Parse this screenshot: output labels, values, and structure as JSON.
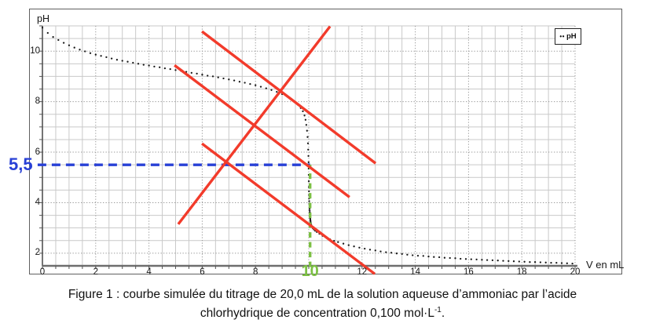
{
  "chart_data": {
    "type": "scatter",
    "xlabel": "V en mL",
    "ylabel": "pH",
    "xlim": [
      0,
      20
    ],
    "ylim": [
      1.5,
      11
    ],
    "x_ticks": [
      0,
      2,
      4,
      6,
      8,
      10,
      12,
      14,
      16,
      18,
      20
    ],
    "y_ticks": [
      2,
      4,
      6,
      8,
      10
    ],
    "minor_step": 0.5,
    "grid": {
      "minor_color": "#c9c9c9",
      "major_color": "#979797"
    },
    "legend": {
      "label": "pH"
    },
    "series": [
      {
        "name": "pH",
        "style": "dotted",
        "color": "#1a1a1a",
        "points": [
          [
            0,
            10.93
          ],
          [
            0.2,
            10.72
          ],
          [
            0.4,
            10.56
          ],
          [
            0.6,
            10.44
          ],
          [
            0.8,
            10.33
          ],
          [
            1,
            10.23
          ],
          [
            1.2,
            10.14
          ],
          [
            1.4,
            10.06
          ],
          [
            1.6,
            9.99
          ],
          [
            1.8,
            9.92
          ],
          [
            2,
            9.86
          ],
          [
            2.2,
            9.81
          ],
          [
            2.4,
            9.76
          ],
          [
            2.6,
            9.71
          ],
          [
            2.8,
            9.66
          ],
          [
            3,
            9.62
          ],
          [
            3.2,
            9.58
          ],
          [
            3.4,
            9.54
          ],
          [
            3.6,
            9.5
          ],
          [
            3.8,
            9.46
          ],
          [
            4,
            9.43
          ],
          [
            4.2,
            9.39
          ],
          [
            4.4,
            9.36
          ],
          [
            4.6,
            9.32
          ],
          [
            4.8,
            9.29
          ],
          [
            5,
            9.25
          ],
          [
            5.2,
            9.22
          ],
          [
            5.4,
            9.18
          ],
          [
            5.6,
            9.14
          ],
          [
            5.8,
            9.11
          ],
          [
            6,
            9.07
          ],
          [
            6.2,
            9.03
          ],
          [
            6.4,
            9
          ],
          [
            6.6,
            8.96
          ],
          [
            6.8,
            8.92
          ],
          [
            7,
            8.88
          ],
          [
            7.2,
            8.84
          ],
          [
            7.4,
            8.79
          ],
          [
            7.6,
            8.75
          ],
          [
            7.8,
            8.7
          ],
          [
            8,
            8.65
          ],
          [
            8.2,
            8.59
          ],
          [
            8.4,
            8.53
          ],
          [
            8.6,
            8.46
          ],
          [
            8.8,
            8.39
          ],
          [
            9,
            8.3
          ],
          [
            9.2,
            8.2
          ],
          [
            9.35,
            8.1
          ],
          [
            9.5,
            7.97
          ],
          [
            9.6,
            7.87
          ],
          [
            9.7,
            7.75
          ],
          [
            9.78,
            7.62
          ],
          [
            9.84,
            7.45
          ],
          [
            9.88,
            7.28
          ],
          [
            9.91,
            7.08
          ],
          [
            9.935,
            6.85
          ],
          [
            9.955,
            6.6
          ],
          [
            9.97,
            6.35
          ],
          [
            9.98,
            6.1
          ],
          [
            9.988,
            5.85
          ],
          [
            9.994,
            5.6
          ],
          [
            9.998,
            5.35
          ],
          [
            10,
            5.1
          ],
          [
            10.003,
            4.85
          ],
          [
            10.006,
            4.62
          ],
          [
            10.009,
            4.45
          ],
          [
            10.012,
            4.3
          ],
          [
            10.015,
            4.17
          ],
          [
            10.018,
            4.06
          ],
          [
            10.022,
            3.96
          ],
          [
            10.026,
            3.86
          ],
          [
            10.03,
            3.76
          ],
          [
            10.034,
            3.69
          ],
          [
            10.038,
            3.62
          ],
          [
            10.042,
            3.56
          ],
          [
            10.046,
            3.5
          ],
          [
            10.05,
            3.44
          ],
          [
            10.055,
            3.38
          ],
          [
            10.06,
            3.33
          ],
          [
            10.066,
            3.28
          ],
          [
            10.072,
            3.23
          ],
          [
            10.08,
            3.18
          ],
          [
            10.09,
            3.13
          ],
          [
            10.1,
            3.09
          ],
          [
            10.12,
            3.04
          ],
          [
            10.15,
            2.99
          ],
          [
            10.19,
            2.94
          ],
          [
            10.24,
            2.89
          ],
          [
            10.3,
            2.84
          ],
          [
            10.4,
            2.77
          ],
          [
            10.52,
            2.69
          ],
          [
            10.66,
            2.61
          ],
          [
            10.8,
            2.55
          ],
          [
            10.95,
            2.49
          ],
          [
            11.1,
            2.44
          ],
          [
            11.3,
            2.38
          ],
          [
            11.5,
            2.32
          ],
          [
            11.7,
            2.27
          ],
          [
            11.9,
            2.22
          ],
          [
            12.1,
            2.18
          ],
          [
            12.3,
            2.14
          ],
          [
            12.5,
            2.11
          ],
          [
            12.7,
            2.07
          ],
          [
            12.9,
            2.04
          ],
          [
            13.1,
            2.02
          ],
          [
            13.3,
            1.99
          ],
          [
            13.5,
            1.97
          ],
          [
            13.7,
            1.94
          ],
          [
            13.9,
            1.92
          ],
          [
            14.1,
            1.9
          ],
          [
            14.3,
            1.89
          ],
          [
            14.5,
            1.87
          ],
          [
            14.7,
            1.85
          ],
          [
            14.9,
            1.84
          ],
          [
            15.1,
            1.82
          ],
          [
            15.3,
            1.81
          ],
          [
            15.5,
            1.8
          ],
          [
            15.7,
            1.78
          ],
          [
            15.9,
            1.77
          ],
          [
            16.1,
            1.76
          ],
          [
            16.3,
            1.75
          ],
          [
            16.5,
            1.74
          ],
          [
            16.7,
            1.73
          ],
          [
            16.9,
            1.72
          ],
          [
            17.1,
            1.71
          ],
          [
            17.3,
            1.7
          ],
          [
            17.5,
            1.69
          ],
          [
            17.7,
            1.68
          ],
          [
            17.9,
            1.67
          ],
          [
            18.1,
            1.66
          ],
          [
            18.3,
            1.65
          ],
          [
            18.5,
            1.65
          ],
          [
            18.7,
            1.64
          ],
          [
            18.9,
            1.63
          ],
          [
            19.1,
            1.62
          ],
          [
            19.3,
            1.62
          ],
          [
            19.5,
            1.61
          ],
          [
            19.7,
            1.6
          ],
          [
            19.9,
            1.59
          ]
        ]
      }
    ],
    "annotations": {
      "tangent_lines": {
        "color": "#f23b2b",
        "segments": [
          {
            "x1": 5.1,
            "y1": 3.15,
            "x2": 10.8,
            "y2": 10.98
          },
          {
            "x1": 5.99,
            "y1": 10.78,
            "x2": 12.51,
            "y2": 5.56
          },
          {
            "x1": 4.96,
            "y1": 9.44,
            "x2": 11.53,
            "y2": 4.22
          },
          {
            "x1": 5.99,
            "y1": 6.34,
            "x2": 12.48,
            "y2": 1.18
          }
        ]
      },
      "half_equiv_line": {
        "color": "#2840d6",
        "pH": 5.5,
        "v_from": -0.18,
        "v_to": 10,
        "label": "5,5"
      },
      "equiv_line": {
        "color": "#7cc043",
        "v": 10,
        "ph_from": 1.45,
        "ph_to": 5.5,
        "label": "10"
      }
    },
    "axis_titles": {
      "y": "pH",
      "x": "V en mL"
    }
  },
  "caption": {
    "line1": "Figure 1 : courbe simulée du titrage de 20,0 mL de la solution aqueuse d’ammoniac par l’acide",
    "line2_pre": "chlorhydrique de concentration 0,100 mol·L",
    "line2_sup": "-1",
    "line2_post": "."
  }
}
